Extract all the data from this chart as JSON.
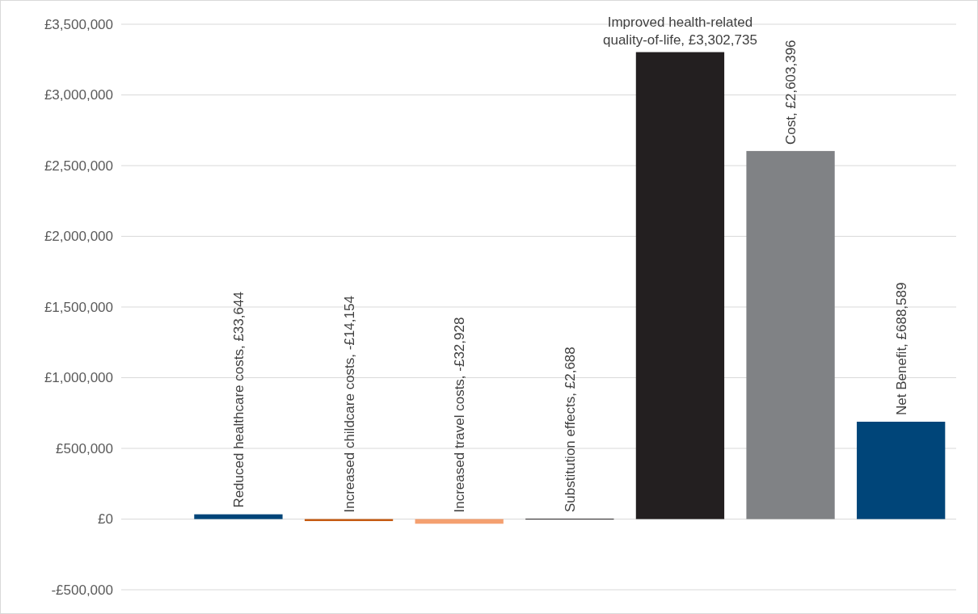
{
  "chart_data": {
    "type": "bar",
    "categories": [
      null,
      null,
      null,
      null,
      null,
      null,
      null,
      null
    ],
    "values": [
      null,
      33644,
      -14154,
      -32928,
      2688,
      3302735,
      2603396,
      688589
    ],
    "colors": [
      null,
      "#004579",
      "#c55a11",
      "#f4a070",
      "#231f20",
      "#231f20",
      "#808285",
      "#004579"
    ],
    "value_labels": [
      null,
      "Reduced healthcare costs, £33,644",
      "Increased childcare costs, -£14,154",
      "Increased travel costs, -£32,928",
      "Substitution effects, £2,688",
      "Improved health-related quality-of-life, £3,302,735",
      "Cost, £2,603,396",
      "Net Benefit, £688,589"
    ],
    "ylim": [
      -500000,
      3500000
    ],
    "yticks": [
      {
        "value": -500000,
        "label": "-£500,000"
      },
      {
        "value": 0,
        "label": "£0"
      },
      {
        "value": 500000,
        "label": "£500,000"
      },
      {
        "value": 1000000,
        "label": "£1,000,000"
      },
      {
        "value": 1500000,
        "label": "£1,500,000"
      },
      {
        "value": 2000000,
        "label": "£2,000,000"
      },
      {
        "value": 2500000,
        "label": "£2,500,000"
      },
      {
        "value": 3000000,
        "label": "£3,000,000"
      },
      {
        "value": 3500000,
        "label": "£3,500,000"
      }
    ],
    "grid": "y"
  }
}
